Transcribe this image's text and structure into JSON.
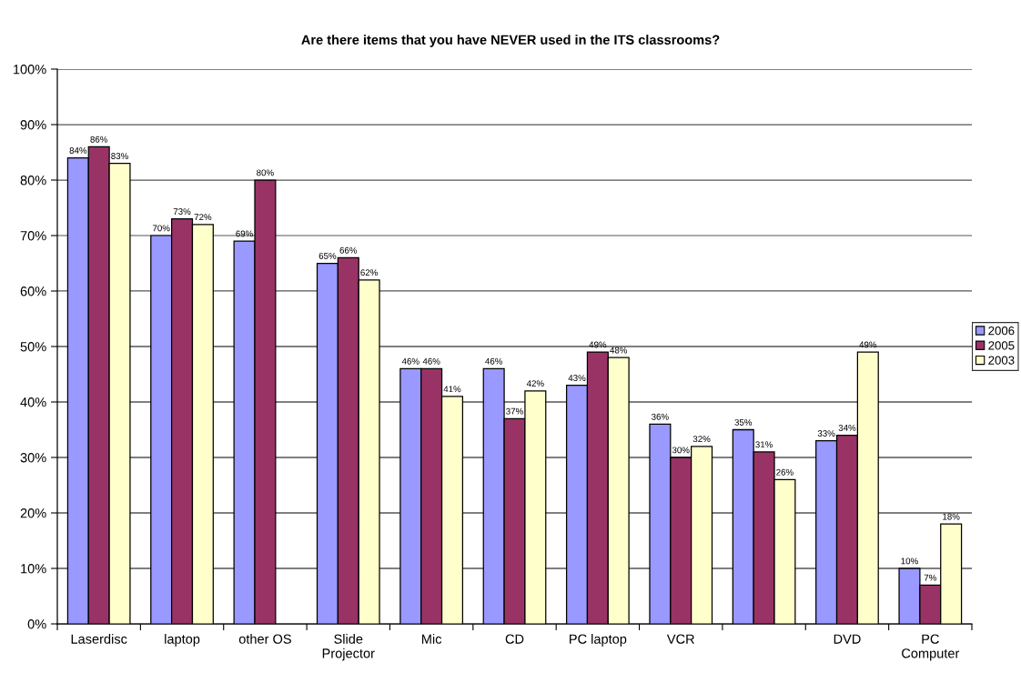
{
  "chart_data": {
    "type": "bar",
    "title": "Are there items that you have NEVER used in the ITS classrooms?",
    "categories": [
      "Laserdisc",
      "laptop",
      "other OS",
      "Slide\nProjector",
      "Mic",
      "CD",
      "PC laptop",
      "VCR",
      null,
      "DVD",
      "PC\nComputer"
    ],
    "series": [
      {
        "name": "2006",
        "color": "#9999ff",
        "values": [
          84,
          70,
          69,
          65,
          46,
          46,
          43,
          36,
          35,
          33,
          10
        ],
        "value_labels": [
          "84%",
          "70%",
          "69%",
          "65%",
          "46%",
          "46%",
          "43%",
          "36%",
          "35%",
          "33%",
          "10%"
        ]
      },
      {
        "name": "2005",
        "color": "#993366",
        "values": [
          86,
          73,
          80,
          66,
          46,
          37,
          49,
          30,
          31,
          34,
          7
        ],
        "value_labels": [
          "86%",
          "73%",
          "80%",
          "66%",
          "46%",
          "37%",
          "49%",
          "30%",
          "31%",
          "34%",
          "7%"
        ]
      },
      {
        "name": "2003",
        "color": "#ffffcc",
        "values": [
          83,
          72,
          null,
          62,
          41,
          42,
          48,
          32,
          26,
          49,
          18
        ],
        "value_labels": [
          "83%",
          "72%",
          null,
          "62%",
          "41%",
          "42%",
          "48%",
          "32%",
          "26%",
          "49%",
          "18%"
        ]
      }
    ],
    "ylim": [
      0,
      100
    ],
    "yticks": [
      {
        "value": 0,
        "label": "0%"
      },
      {
        "value": 10,
        "label": "10%"
      },
      {
        "value": 20,
        "label": "20%"
      },
      {
        "value": 30,
        "label": "30%"
      },
      {
        "value": 40,
        "label": "40%"
      },
      {
        "value": 50,
        "label": "50%"
      },
      {
        "value": 60,
        "label": "60%"
      },
      {
        "value": 70,
        "label": "70%"
      },
      {
        "value": 80,
        "label": "80%"
      },
      {
        "value": 90,
        "label": "90%"
      },
      {
        "value": 100,
        "label": "100%"
      }
    ],
    "grid": "y",
    "legend": "right"
  }
}
